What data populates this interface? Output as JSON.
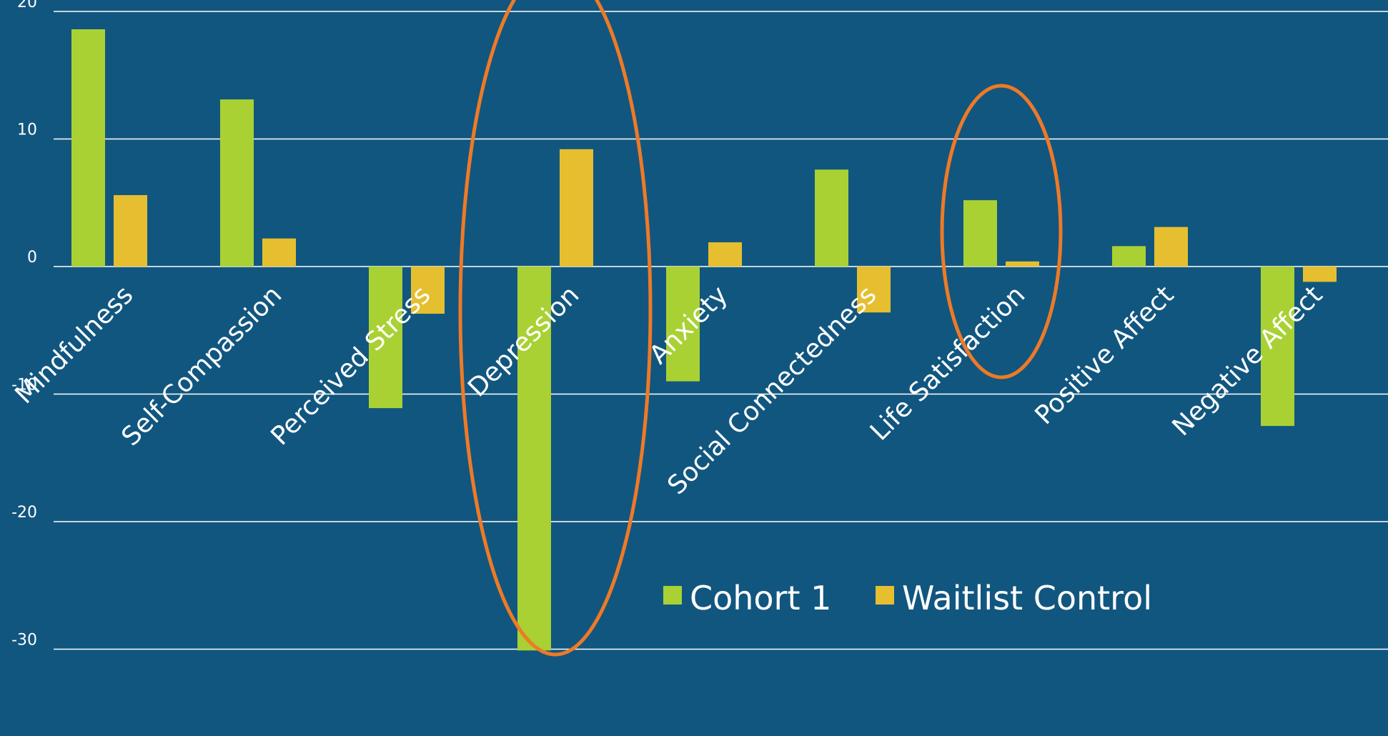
{
  "chart_data": {
    "type": "bar",
    "title": "",
    "xlabel": "",
    "ylabel": "",
    "categories": [
      "Mindfulness",
      "Self-Compassion",
      "Perceived Stress",
      "Depression",
      "Anxiety",
      "Social Connectedness",
      "Life Satisfaction",
      "Positive Affect",
      "Negative Affect"
    ],
    "series": [
      {
        "name": "Cohort 1",
        "color": "#a9d134",
        "values": [
          18.6,
          13.1,
          -11.1,
          -30.1,
          -9.0,
          7.6,
          5.2,
          1.6,
          -12.5
        ]
      },
      {
        "name": "Waitlist Control",
        "color": "#e5bf30",
        "values": [
          5.6,
          2.2,
          -3.7,
          9.2,
          1.9,
          -3.6,
          0.4,
          3.1,
          -1.2
        ]
      }
    ],
    "ylim": [
      -36,
      20
    ],
    "yticks": [
      20,
      10,
      0,
      -10,
      -20,
      -30
    ],
    "grid": true,
    "legend_position": "bottom-center",
    "highlight_color": "#ee7a26",
    "highlighted_categories": [
      "Depression",
      "Life Satisfaction"
    ],
    "colors": {
      "background": "#11567f",
      "gridline": "#ffffff",
      "text": "#ffffff"
    }
  }
}
